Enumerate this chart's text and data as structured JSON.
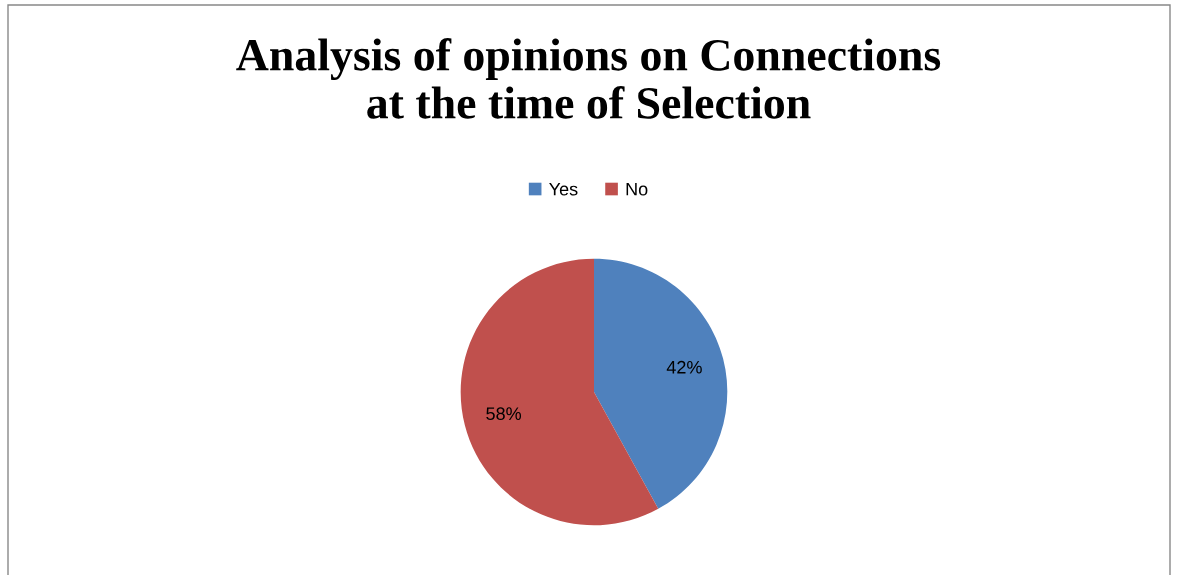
{
  "chart_data": {
    "type": "pie",
    "title": "Analysis of opinions on Connections\nat the time of Selection",
    "categories": [
      "Yes",
      "No"
    ],
    "values": [
      42,
      58
    ],
    "colors": [
      "#4f81bd",
      "#c0504d"
    ],
    "value_labels": [
      "42%",
      "58%"
    ],
    "legend": "top"
  }
}
